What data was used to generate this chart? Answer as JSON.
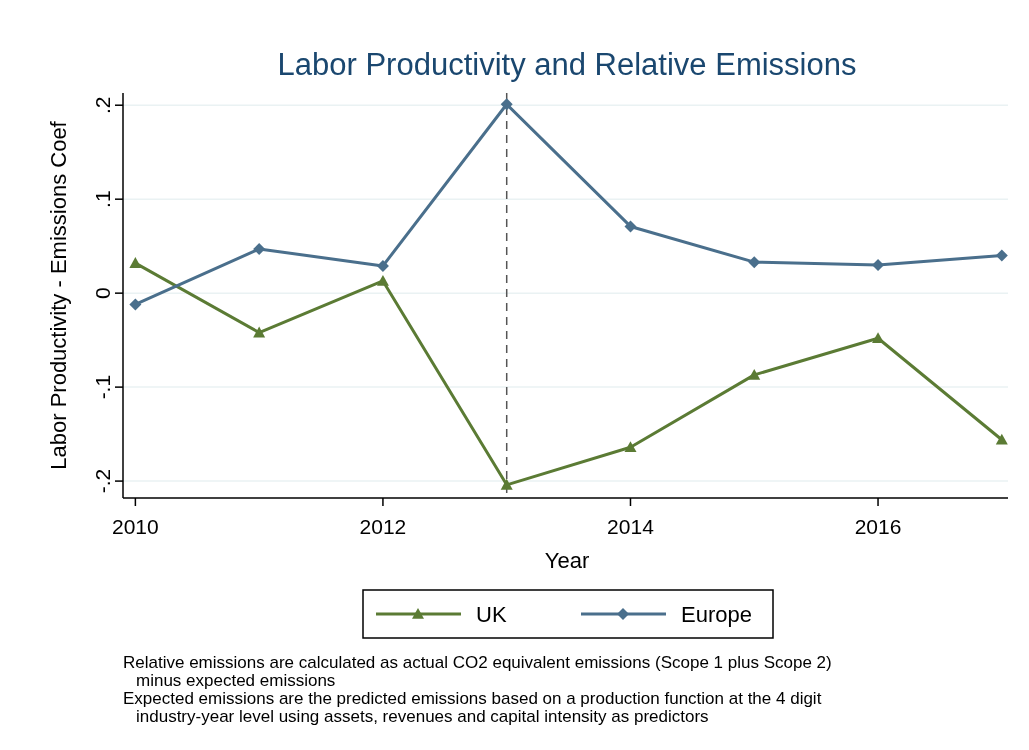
{
  "chart_data": {
    "type": "line",
    "title": "Labor Productivity and Relative Emissions",
    "xlabel": "Year",
    "ylabel": "Labor Productivity - Emissions Coef",
    "x": [
      2010,
      2011,
      2012,
      2013,
      2014,
      2015,
      2016,
      2017
    ],
    "series": [
      {
        "name": "UK",
        "color": "#5b7b34",
        "marker": "triangle",
        "values": [
          0.032,
          -0.042,
          0.013,
          -0.204,
          -0.164,
          -0.087,
          -0.048,
          -0.156
        ]
      },
      {
        "name": "Europe",
        "color": "#4a6f8c",
        "marker": "diamond",
        "values": [
          -0.012,
          0.047,
          0.029,
          0.201,
          0.071,
          0.033,
          0.03,
          0.04
        ]
      }
    ],
    "xlim": [
      2009.9,
      2017.05
    ],
    "xticks": [
      2010,
      2012,
      2014,
      2016
    ],
    "ylim": [
      -0.218,
      0.213
    ],
    "yticks": [
      {
        "value": -0.2,
        "label": "-.2"
      },
      {
        "value": -0.1,
        "label": "-.1"
      },
      0,
      {
        "value": 0.1,
        "label": ".1"
      },
      {
        "value": 0.2,
        "label": ".2"
      }
    ],
    "grid": "y",
    "legend": "bottom",
    "line_style": "solid",
    "ref_lines": [
      {
        "axis": "x",
        "value": 2013,
        "line_style": "dashed",
        "color": "#555555"
      }
    ],
    "annotations": [
      "Relative emissions are calculated as actual CO2 equivalent emissions (Scope 1 plus Scope 2) minus expected emissions",
      "Expected emissions are the predicted emissions based on a production function at the 4 digit industry-year level using assets, revenues and capital intensity as predictors"
    ]
  }
}
